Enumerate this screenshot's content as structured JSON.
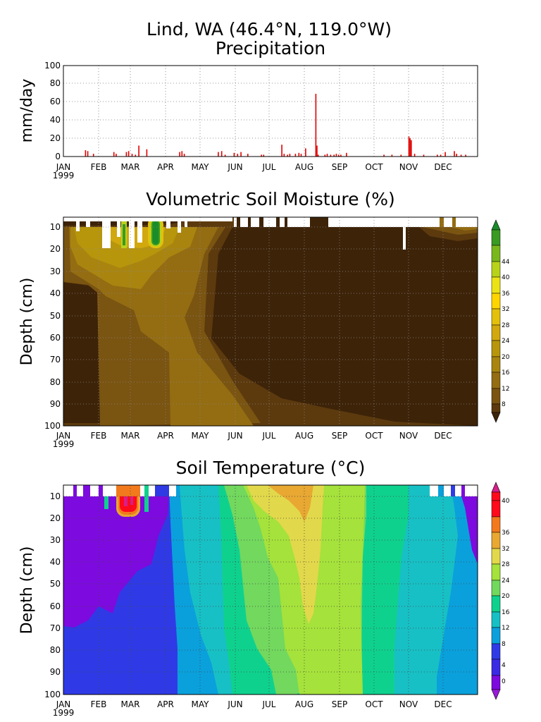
{
  "header": {
    "title": "Lind, WA  (46.4°N, 119.0°W)",
    "subtitle": "Precipitation"
  },
  "months": [
    "JAN",
    "FEB",
    "MAR",
    "APR",
    "MAY",
    "JUN",
    "JUL",
    "AUG",
    "SEP",
    "OCT",
    "NOV",
    "DEC"
  ],
  "year_label": "1999",
  "precip": {
    "ylabel": "mm/day",
    "yticks": [
      "0",
      "20",
      "40",
      "60",
      "80",
      "100"
    ]
  },
  "moisture": {
    "title": "Volumetric Soil Moisture (%)",
    "ylabel": "Depth (cm)",
    "yticks": [
      "10",
      "20",
      "30",
      "40",
      "50",
      "60",
      "70",
      "80",
      "90",
      "100"
    ],
    "colorbar": [
      "8",
      "12",
      "16",
      "20",
      "24",
      "28",
      "32",
      "36",
      "40",
      "44"
    ]
  },
  "temperature": {
    "title": "Soil Temperature (°C)",
    "ylabel": "Depth (cm)",
    "yticks": [
      "10",
      "20",
      "30",
      "40",
      "50",
      "60",
      "70",
      "80",
      "90",
      "100"
    ],
    "colorbar": [
      "0",
      "4",
      "8",
      "12",
      "16",
      "20",
      "24",
      "28",
      "32",
      "36",
      "40"
    ]
  },
  "colors": {
    "precip_bar": "#e00000",
    "moisture_scale": [
      "#3d2308",
      "#5c3a0e",
      "#7a5411",
      "#946c12",
      "#a98510",
      "#b8960c",
      "#d1a80e",
      "#e3c00c",
      "#ece316",
      "#b8d21a",
      "#7ab71c",
      "#3a9a22",
      "#1a8c2a"
    ],
    "temperature_scale": [
      "#7d0adf",
      "#2f3ae6",
      "#0aa0dc",
      "#17c0c5",
      "#0fd18e",
      "#72d85e",
      "#a5e23b",
      "#e2d84b",
      "#e8a832",
      "#f27a1c",
      "#ff0a1c",
      "#d81f8a"
    ]
  },
  "chart_data": [
    {
      "type": "bar",
      "title": "Precipitation",
      "ylabel": "mm/day",
      "ylim": [
        0,
        100
      ],
      "x_axis": "day of year 1999",
      "series": [
        {
          "x": [
            20,
            22,
            27,
            45,
            47,
            56,
            58,
            61,
            64,
            67,
            74,
            103,
            105,
            107,
            137,
            140,
            143,
            151,
            154,
            157,
            163,
            175,
            177,
            193,
            195,
            198,
            200,
            205,
            208,
            210,
            214,
            223,
            224,
            225,
            231,
            233,
            236,
            239,
            241,
            243,
            245,
            250,
            283,
            290,
            298,
            305,
            306,
            307,
            310,
            318,
            330,
            333,
            337,
            345,
            347,
            351,
            355
          ],
          "values": [
            7,
            6,
            3,
            5,
            3,
            5,
            6,
            3,
            2,
            12,
            8,
            5,
            6,
            3,
            5,
            6,
            2,
            4,
            3,
            5,
            3,
            2,
            2,
            13,
            3,
            2,
            3,
            3,
            4,
            3,
            9,
            69,
            12,
            2,
            2,
            3,
            2,
            2,
            3,
            2,
            2,
            4,
            2,
            2,
            2,
            22,
            20,
            18,
            3,
            2,
            2,
            2,
            5,
            6,
            3,
            2,
            2
          ]
        }
      ]
    },
    {
      "type": "heatmap",
      "title": "Volumetric Soil Moisture (%)",
      "ylabel": "Depth (cm)",
      "ylim": [
        100,
        5
      ],
      "colorbar_ticks": [
        8,
        12,
        16,
        20,
        24,
        28,
        32,
        36,
        40,
        44
      ]
    },
    {
      "type": "heatmap",
      "title": "Soil Temperature (°C)",
      "ylabel": "Depth (cm)",
      "ylim": [
        100,
        5
      ],
      "colorbar_ticks": [
        0,
        4,
        8,
        12,
        16,
        20,
        24,
        28,
        32,
        36,
        40
      ]
    }
  ]
}
